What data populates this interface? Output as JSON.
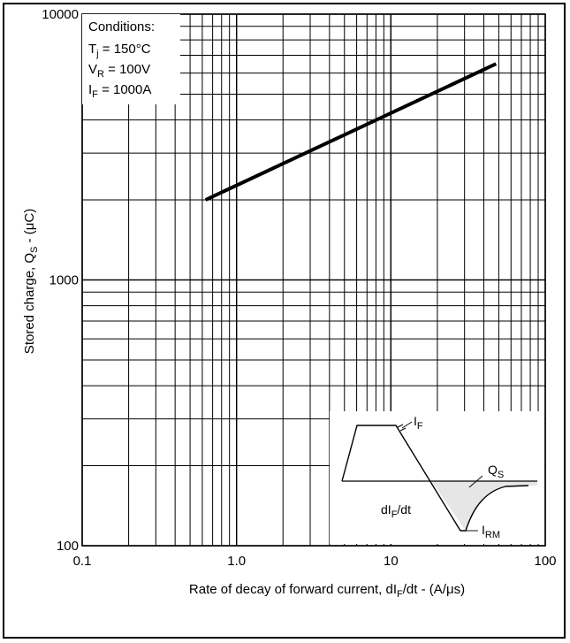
{
  "chart_data": {
    "type": "line",
    "xscale": "log",
    "yscale": "log",
    "xlim": [
      0.1,
      100
    ],
    "ylim": [
      100,
      10000
    ],
    "grid": true,
    "xlabel": "Rate of decay of forward current, dI_F/dt - (A/μs)",
    "ylabel": "Stored charge, Q_S - (μC)",
    "x_ticks": [
      {
        "value": 0.1,
        "label": "0.1"
      },
      {
        "value": 1,
        "label": "1.0"
      },
      {
        "value": 10,
        "label": "10"
      },
      {
        "value": 100,
        "label": "100"
      }
    ],
    "y_ticks": [
      {
        "value": 100,
        "label": "100"
      },
      {
        "value": 1000,
        "label": "1000"
      },
      {
        "value": 10000,
        "label": "10000"
      }
    ],
    "series": [
      {
        "points": [
          [
            0.63,
            2000
          ],
          [
            48,
            6500
          ]
        ]
      }
    ],
    "conditions": {
      "title": "Conditions:",
      "lines": [
        {
          "label": "T",
          "sub": "j",
          "value": "= 150°C"
        },
        {
          "label": "V",
          "sub": "R",
          "value": "= 100V"
        },
        {
          "label": "I",
          "sub": "F",
          "value": "= 1000A"
        }
      ]
    },
    "inset": {
      "if_label": {
        "main": "I",
        "sub": "F"
      },
      "qs_label": {
        "main": "Q",
        "sub": "S"
      },
      "didt_label": {
        "pre": "dI",
        "sub": "F",
        "post": "/dt"
      },
      "irm_label": {
        "main": "I",
        "sub": "RM"
      }
    }
  }
}
